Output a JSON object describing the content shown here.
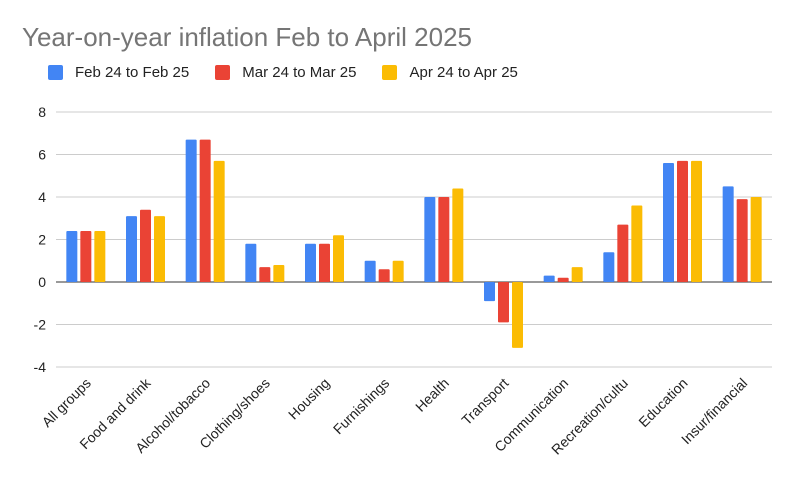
{
  "chart_data": {
    "type": "bar",
    "title": "Year-on-year inflation Feb to April 2025",
    "xlabel": "",
    "ylabel": "",
    "ylim": [
      -4,
      8
    ],
    "yticks": [
      8,
      6,
      4,
      2,
      0,
      -2,
      -4
    ],
    "grid": true,
    "legend_position": "top-left",
    "categories": [
      "All groups",
      "Food and drink",
      "Alcohol/tobacco",
      "Clothing/shoes",
      "Housing",
      "Furnishings",
      "Health",
      "Transport",
      "Communication",
      "Recreation/cultu",
      "Education",
      "Insur/financial"
    ],
    "series": [
      {
        "name": "Feb 24 to Feb 25",
        "color": "#4285F4",
        "values": [
          2.4,
          3.1,
          6.7,
          1.8,
          1.8,
          1.0,
          4.0,
          -0.9,
          0.3,
          1.4,
          5.6,
          4.5
        ]
      },
      {
        "name": "Mar 24 to Mar 25",
        "color": "#EA4335",
        "values": [
          2.4,
          3.4,
          6.7,
          0.7,
          1.8,
          0.6,
          4.0,
          -1.9,
          0.2,
          2.7,
          5.7,
          3.9
        ]
      },
      {
        "name": "Apr 24 to Apr 25",
        "color": "#FBBC04",
        "values": [
          2.4,
          3.1,
          5.7,
          0.8,
          2.2,
          1.0,
          4.4,
          -3.1,
          0.7,
          3.6,
          5.7,
          4.0
        ]
      }
    ]
  }
}
